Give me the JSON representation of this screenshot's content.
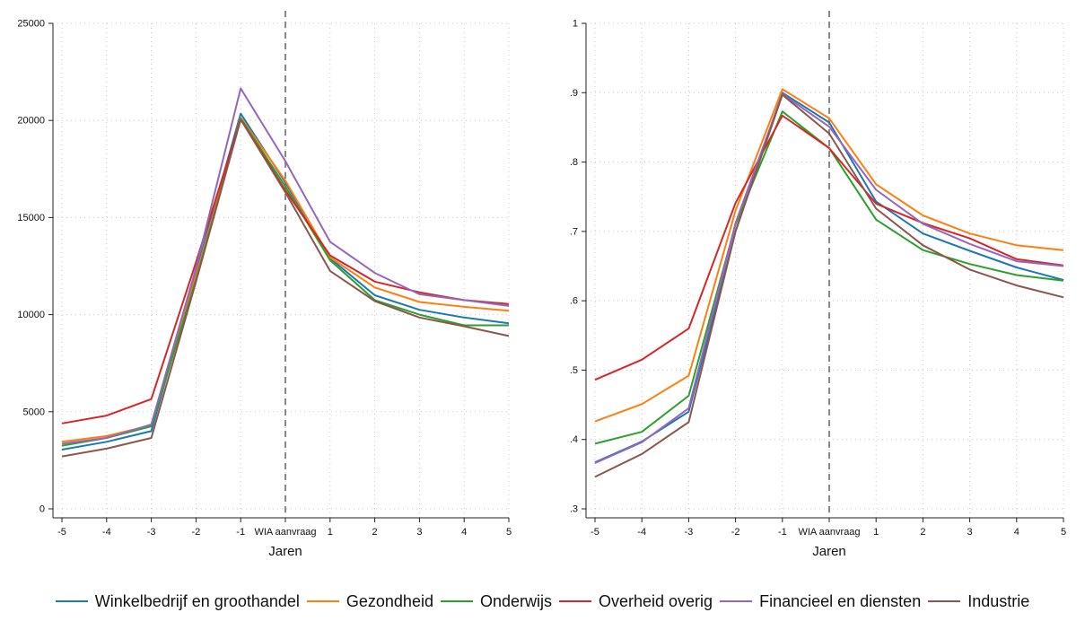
{
  "chart_data": [
    {
      "type": "line",
      "categories": [
        "-5",
        "-4",
        "-3",
        "-2",
        "-1",
        "WIA aanvraag",
        "1",
        "2",
        "3",
        "4",
        "5"
      ],
      "x": [
        -5,
        -4,
        -3,
        -2,
        -1,
        0,
        1,
        2,
        3,
        4,
        5
      ],
      "xlabel": "Jaren",
      "ylabel": "",
      "ylim": [
        0,
        25000
      ],
      "yticks": [
        0,
        5000,
        10000,
        15000,
        20000,
        25000
      ],
      "ytick_labels": [
        "0",
        "5000",
        "10000",
        "15000",
        "20000",
        "25000"
      ],
      "vline_at": 0,
      "grid": true,
      "series": [
        {
          "name": "Winkelbedrijf en groothandel",
          "values": [
            3050,
            3450,
            4000,
            12200,
            20350,
            16800,
            12900,
            11000,
            10250,
            9850,
            9550
          ]
        },
        {
          "name": "Gezondheid",
          "values": [
            3450,
            3750,
            4300,
            12000,
            20150,
            16900,
            12950,
            11400,
            10650,
            10400,
            10200
          ]
        },
        {
          "name": "Onderwijs",
          "values": [
            3250,
            3650,
            4250,
            11800,
            20100,
            16600,
            12800,
            10750,
            10000,
            9450,
            9450
          ]
        },
        {
          "name": "Overheid overig",
          "values": [
            4400,
            4800,
            5650,
            12700,
            20050,
            16400,
            13050,
            11700,
            11150,
            10750,
            10550
          ]
        },
        {
          "name": "Financieel en diensten",
          "values": [
            3350,
            3650,
            4350,
            12400,
            21650,
            17900,
            13750,
            12150,
            11050,
            10750,
            10450
          ]
        },
        {
          "name": "Industrie",
          "values": [
            2700,
            3100,
            3650,
            11700,
            20050,
            16300,
            12250,
            10700,
            9850,
            9400,
            8900
          ]
        }
      ]
    },
    {
      "type": "line",
      "categories": [
        "-5",
        "-4",
        "-3",
        "-2",
        "-1",
        "WIA aanvraag",
        "1",
        "2",
        "3",
        "4",
        "5"
      ],
      "x": [
        -5,
        -4,
        -3,
        -2,
        -1,
        0,
        1,
        2,
        3,
        4,
        5
      ],
      "xlabel": "Jaren",
      "ylabel": "",
      "ylim": [
        0.3,
        1.0
      ],
      "yticks": [
        0.3,
        0.4,
        0.5,
        0.6,
        0.7,
        0.8,
        0.9,
        1.0
      ],
      "ytick_labels": [
        ".3",
        ".4",
        ".5",
        ".6",
        ".7",
        ".8",
        ".9",
        "1"
      ],
      "vline_at": 0,
      "grid": true,
      "series": [
        {
          "name": "Winkelbedrijf en groothandel",
          "values": [
            0.367,
            0.397,
            0.44,
            0.7,
            0.9,
            0.857,
            0.743,
            0.697,
            0.672,
            0.648,
            0.63
          ]
        },
        {
          "name": "Gezondheid",
          "values": [
            0.426,
            0.451,
            0.492,
            0.73,
            0.905,
            0.863,
            0.768,
            0.723,
            0.697,
            0.68,
            0.673
          ]
        },
        {
          "name": "Onderwijs",
          "values": [
            0.394,
            0.411,
            0.463,
            0.71,
            0.873,
            0.82,
            0.717,
            0.673,
            0.653,
            0.637,
            0.629
          ]
        },
        {
          "name": "Overheid overig",
          "values": [
            0.486,
            0.515,
            0.56,
            0.741,
            0.867,
            0.82,
            0.74,
            0.712,
            0.69,
            0.66,
            0.651
          ]
        },
        {
          "name": "Financieel en diensten",
          "values": [
            0.366,
            0.396,
            0.445,
            0.712,
            0.898,
            0.851,
            0.76,
            0.711,
            0.682,
            0.657,
            0.65
          ]
        },
        {
          "name": "Industrie",
          "values": [
            0.346,
            0.379,
            0.425,
            0.7,
            0.897,
            0.841,
            0.733,
            0.68,
            0.645,
            0.622,
            0.605
          ]
        }
      ]
    }
  ],
  "legend": {
    "placement": "bottom",
    "items": [
      {
        "name": "Winkelbedrijf en groothandel",
        "color": "#1f77b4"
      },
      {
        "name": "Gezondheid",
        "color": "#ff7f0e"
      },
      {
        "name": "Onderwijs",
        "color": "#2ca02c"
      },
      {
        "name": "Overheid overig",
        "color": "#d62728"
      },
      {
        "name": "Financieel en diensten",
        "color": "#9467bd"
      },
      {
        "name": "Industrie",
        "color": "#8c564b"
      }
    ]
  }
}
